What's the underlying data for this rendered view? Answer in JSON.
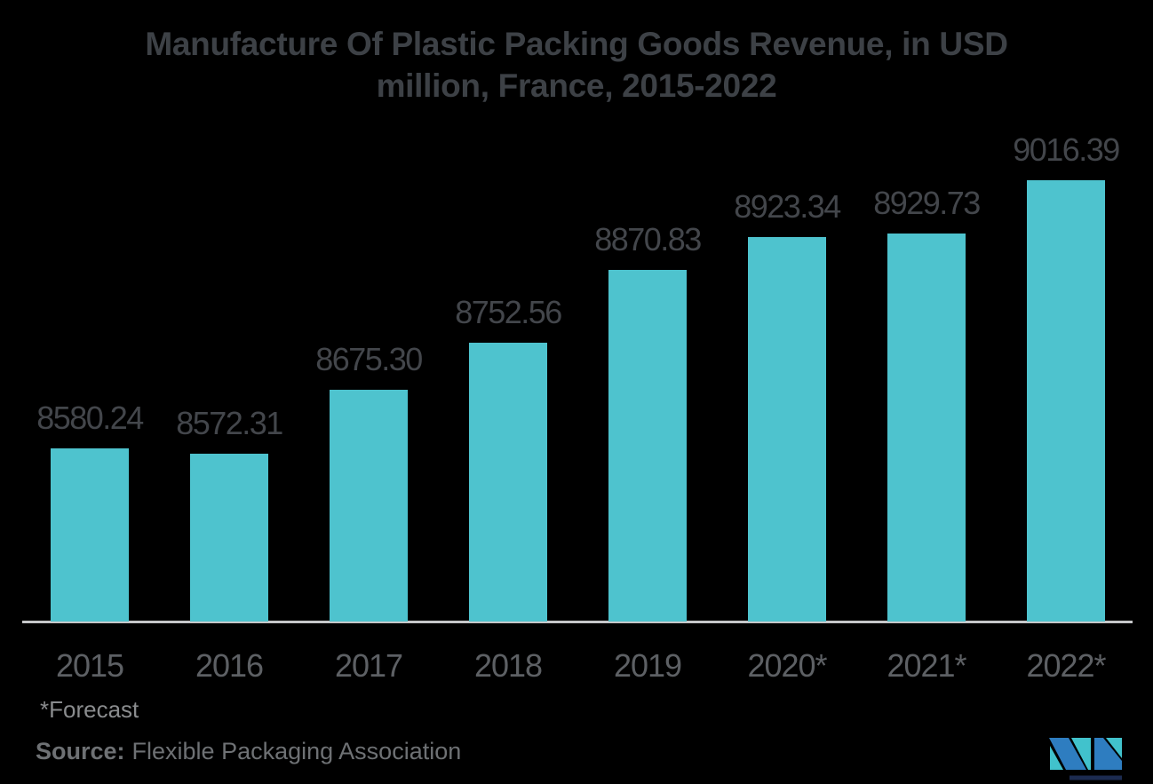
{
  "chart_data": {
    "type": "bar",
    "title": "Manufacture Of Plastic Packing Goods Revenue, in USD million, France, 2015-2022",
    "title_lines": [
      "Manufacture Of Plastic Packing Goods Revenue, in USD",
      "million, France, 2015-2022"
    ],
    "categories": [
      "2015",
      "2016",
      "2017",
      "2018",
      "2019",
      "2020*",
      "2021*",
      "2022*"
    ],
    "values": [
      8580.24,
      8572.31,
      8675.3,
      8752.56,
      8870.83,
      8923.34,
      8929.73,
      9016.39
    ],
    "value_labels": [
      "8580.24",
      "8572.31",
      "8675.30",
      "8752.56",
      "8870.83",
      "8923.34",
      "8929.73",
      "9016.39"
    ],
    "xlabel": "",
    "ylabel": "",
    "ylim": [
      8300,
      9020
    ],
    "grid": false,
    "legend": false,
    "data_labels_position": "above-bars"
  },
  "footnote": "*Forecast",
  "source": {
    "label": "Source:",
    "value": "Flexible Packaging Association"
  },
  "colors": {
    "background": "#000000",
    "title": "#3D4146",
    "value_label": "#43464B",
    "tick_label": "#5D6064",
    "axis_line": "#C6C7C9",
    "footnote": "#8A8C8E",
    "source": "#6E7174",
    "bar": "#4EC3CE",
    "logo_teal": "#41C2CC",
    "logo_blue": "#2E7DC0",
    "logo_navy": "#1C2B50"
  }
}
